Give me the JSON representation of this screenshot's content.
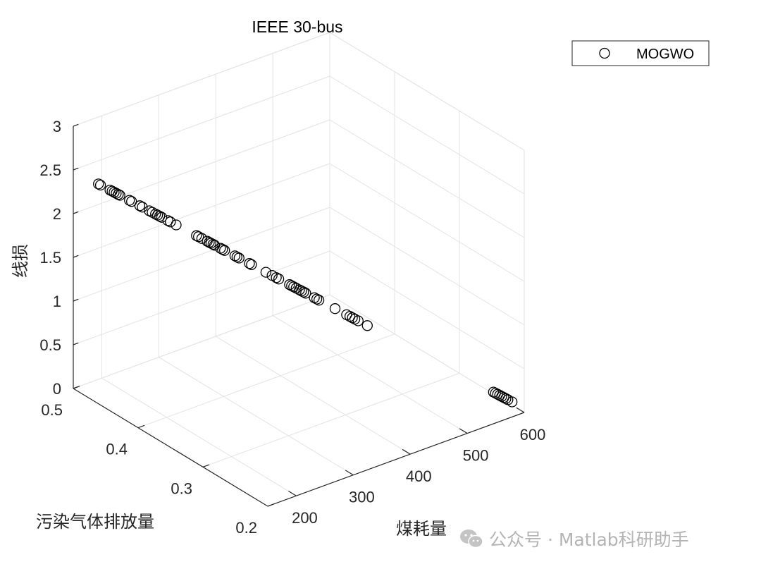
{
  "chart_data": {
    "type": "scatter",
    "title": "IEEE 30-bus",
    "xlabel": "污染气体排放量",
    "ylabel": "煤耗量",
    "zlabel": "线损",
    "xlim": [
      0.2,
      0.5
    ],
    "ylim": [
      150,
      600
    ],
    "zlim": [
      0,
      3
    ],
    "x_ticks": [
      "0.2",
      "0.3",
      "0.4",
      "0.5"
    ],
    "y_ticks": [
      "200",
      "300",
      "400",
      "500",
      "600"
    ],
    "z_ticks": [
      "0",
      "0.5",
      "1",
      "1.5",
      "2",
      "2.5",
      "3"
    ],
    "grid": true,
    "legend": {
      "position": "top-right",
      "entries": [
        "MOGWO"
      ]
    },
    "marker": "open-circle",
    "series": [
      {
        "name": "MOGWO",
        "points": [
          {
            "t": 0.0
          },
          {
            "t": 0.005
          },
          {
            "t": 0.028
          },
          {
            "t": 0.033
          },
          {
            "t": 0.038
          },
          {
            "t": 0.043
          },
          {
            "t": 0.048
          },
          {
            "t": 0.052
          },
          {
            "t": 0.075
          },
          {
            "t": 0.08
          },
          {
            "t": 0.1
          },
          {
            "t": 0.106
          },
          {
            "t": 0.123
          },
          {
            "t": 0.13
          },
          {
            "t": 0.138
          },
          {
            "t": 0.143
          },
          {
            "t": 0.148
          },
          {
            "t": 0.153
          },
          {
            "t": 0.168
          },
          {
            "t": 0.174
          },
          {
            "t": 0.188
          },
          {
            "t": 0.237
          },
          {
            "t": 0.242
          },
          {
            "t": 0.25
          },
          {
            "t": 0.263
          },
          {
            "t": 0.268
          },
          {
            "t": 0.272
          },
          {
            "t": 0.277
          },
          {
            "t": 0.281
          },
          {
            "t": 0.295
          },
          {
            "t": 0.3
          },
          {
            "t": 0.305
          },
          {
            "t": 0.33
          },
          {
            "t": 0.335
          },
          {
            "t": 0.34
          },
          {
            "t": 0.365
          },
          {
            "t": 0.37
          },
          {
            "t": 0.405
          },
          {
            "t": 0.42
          },
          {
            "t": 0.43
          },
          {
            "t": 0.436
          },
          {
            "t": 0.462
          },
          {
            "t": 0.467
          },
          {
            "t": 0.472
          },
          {
            "t": 0.478
          },
          {
            "t": 0.486
          },
          {
            "t": 0.491
          },
          {
            "t": 0.496
          },
          {
            "t": 0.501
          },
          {
            "t": 0.522
          },
          {
            "t": 0.528
          },
          {
            "t": 0.533
          },
          {
            "t": 0.572
          },
          {
            "t": 0.6
          },
          {
            "t": 0.608
          },
          {
            "t": 0.614
          },
          {
            "t": 0.62
          },
          {
            "t": 0.628
          },
          {
            "t": 0.65
          },
          {
            "t": 0.955
          },
          {
            "t": 0.96
          },
          {
            "t": 0.965
          },
          {
            "t": 0.97
          },
          {
            "t": 0.975
          },
          {
            "t": 0.98
          },
          {
            "t": 0.985
          },
          {
            "t": 0.99
          },
          {
            "t": 1.0
          }
        ],
        "start": {
          "x": 0.47,
          "y": 160,
          "z": 2.45
        },
        "end": {
          "x": 0.21,
          "y": 590,
          "z": 0.1
        }
      }
    ]
  },
  "watermark": {
    "text": "公众号 · Matlab科研助手"
  },
  "colors": {
    "marker": "#000000",
    "grid": "#e3e3e3",
    "axis": "#262626",
    "watermark": "#b4b4b4"
  }
}
